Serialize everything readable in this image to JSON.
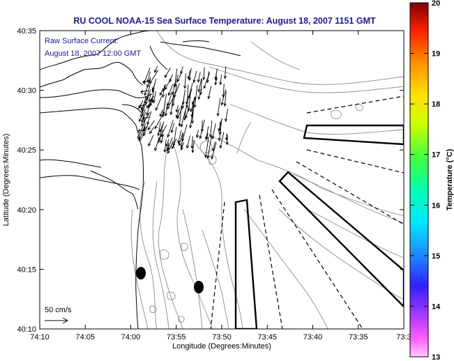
{
  "title": "RU COOL  NOAA-15  Sea Surface Temperature:  August 18, 2007 1151 GMT",
  "annotation": {
    "line1": "Raw Surface Current:",
    "line2": "August 18, 2007 12:00 GMT"
  },
  "x_axis": {
    "label": "Longitude (Degrees:Minutes)",
    "ticks": [
      "74:10",
      "74:05",
      "74:00",
      "73:55",
      "73:50",
      "73:45",
      "73:40",
      "73:35",
      "73:3"
    ]
  },
  "y_axis": {
    "label": "Latitude (Degrees:Minutes)",
    "ticks": [
      "40:35",
      "40:30",
      "40:25",
      "40:20",
      "40:15",
      "40:10"
    ]
  },
  "colorbar": {
    "label": "Temperature (°C)",
    "ticks": [
      "20",
      "19",
      "18",
      "17",
      "16",
      "15",
      "14",
      "13"
    ],
    "min": 13,
    "max": 20
  },
  "scale_arrow": {
    "label": "50 cm/s"
  },
  "colors": {
    "title": "#1a1a9a",
    "land_outline": "#000000",
    "bathymetry": "#8c8c8c"
  }
}
